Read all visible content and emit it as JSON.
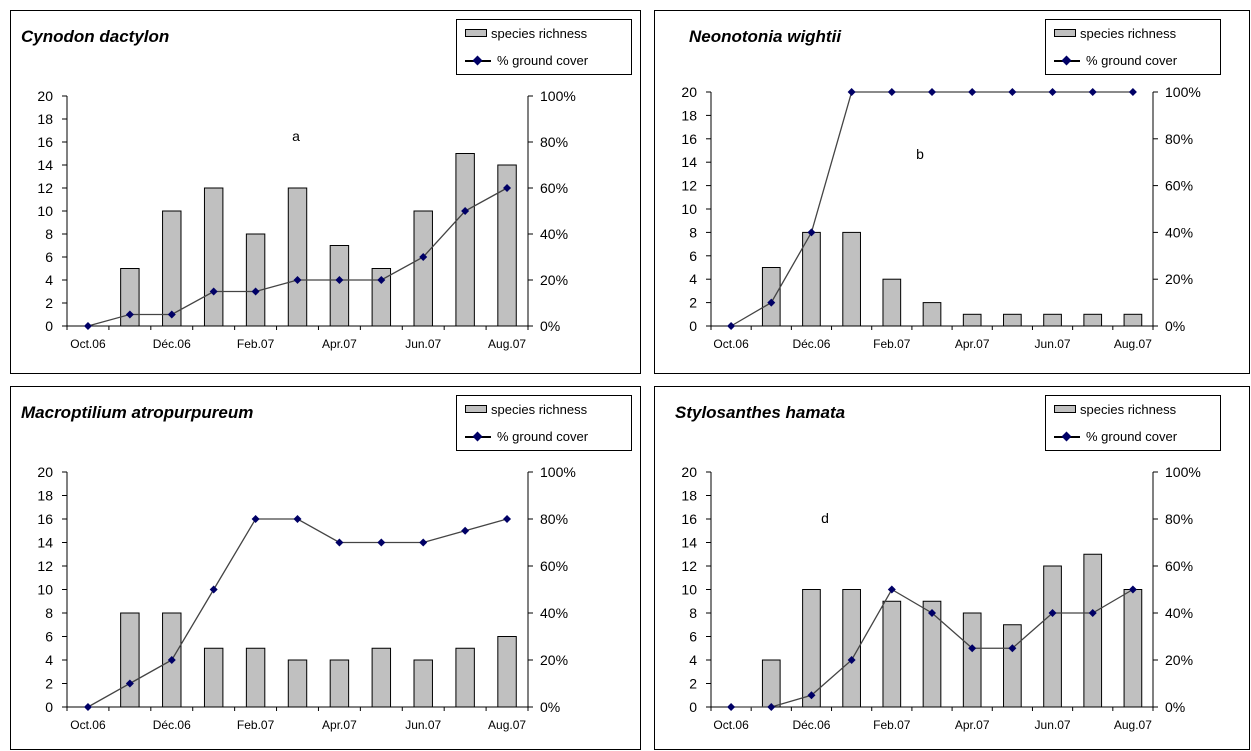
{
  "legend": {
    "bars_label": "species richness",
    "line_label": "% ground cover"
  },
  "colors": {
    "bar_fill": "#c0c0c0",
    "line": "#444444",
    "marker": "#000066"
  },
  "chart_data": [
    {
      "type": "bar",
      "title": "Cynodon dactylon",
      "annotation": "a",
      "categories": [
        "Oct.06",
        "",
        "Déc.06",
        "",
        "Feb.07",
        "",
        "Apr.07",
        "",
        "Jun.07",
        "",
        "Aug.07"
      ],
      "x_tick_labels": [
        "Oct.06",
        "Déc.06",
        "Feb.07",
        "Apr.07",
        "Jun.07",
        "Aug.07"
      ],
      "left_axis": {
        "range": [
          0,
          20
        ],
        "ticks": [
          "0",
          "2",
          "4",
          "6",
          "8",
          "10",
          "12",
          "14",
          "16",
          "18",
          "20"
        ]
      },
      "right_axis": {
        "range": [
          0,
          100
        ],
        "ticks": [
          "0%",
          "20%",
          "40%",
          "60%",
          "80%",
          "100%"
        ]
      },
      "series": [
        {
          "name": "species richness",
          "type": "bar",
          "axis": "left",
          "values": [
            0,
            5,
            10,
            12,
            8,
            12,
            7,
            5,
            10,
            15,
            14
          ]
        },
        {
          "name": "% ground cover",
          "type": "line",
          "axis": "right",
          "values": [
            0,
            5,
            5,
            15,
            15,
            20,
            20,
            20,
            30,
            50,
            60
          ]
        }
      ]
    },
    {
      "type": "bar",
      "title": "Neonotonia wightii",
      "annotation": "b",
      "categories": [
        "Oct.06",
        "",
        "Déc.06",
        "",
        "Feb.07",
        "",
        "Apr.07",
        "",
        "Jun.07",
        "",
        "Aug.07"
      ],
      "x_tick_labels": [
        "Oct.06",
        "Déc.06",
        "Feb.07",
        "Apr.07",
        "Jun.07",
        "Aug.07"
      ],
      "left_axis": {
        "range": [
          0,
          20
        ],
        "ticks": [
          "0",
          "2",
          "4",
          "6",
          "8",
          "10",
          "12",
          "14",
          "16",
          "18",
          "20"
        ]
      },
      "right_axis": {
        "range": [
          0,
          100
        ],
        "ticks": [
          "0%",
          "20%",
          "40%",
          "60%",
          "80%",
          "100%"
        ]
      },
      "series": [
        {
          "name": "species richness",
          "type": "bar",
          "axis": "left",
          "values": [
            0,
            5,
            8,
            8,
            4,
            2,
            1,
            1,
            1,
            1,
            1
          ]
        },
        {
          "name": "% ground cover",
          "type": "line",
          "axis": "right",
          "values": [
            0,
            10,
            40,
            100,
            100,
            100,
            100,
            100,
            100,
            100,
            100
          ]
        }
      ]
    },
    {
      "type": "bar",
      "title": "Macroptilium atropurpureum",
      "annotation": "",
      "categories": [
        "Oct.06",
        "",
        "Déc.06",
        "",
        "Feb.07",
        "",
        "Apr.07",
        "",
        "Jun.07",
        "",
        "Aug.07"
      ],
      "x_tick_labels": [
        "Oct.06",
        "Déc.06",
        "Feb.07",
        "Apr.07",
        "Jun.07",
        "Aug.07"
      ],
      "left_axis": {
        "range": [
          0,
          20
        ],
        "ticks": [
          "0",
          "2",
          "4",
          "6",
          "8",
          "10",
          "12",
          "14",
          "16",
          "18",
          "20"
        ]
      },
      "right_axis": {
        "range": [
          0,
          100
        ],
        "ticks": [
          "0%",
          "20%",
          "40%",
          "60%",
          "80%",
          "100%"
        ]
      },
      "series": [
        {
          "name": "species richness",
          "type": "bar",
          "axis": "left",
          "values": [
            0,
            8,
            8,
            5,
            5,
            4,
            4,
            5,
            4,
            5,
            6
          ]
        },
        {
          "name": "% ground cover",
          "type": "line",
          "axis": "right",
          "values": [
            0,
            10,
            20,
            50,
            80,
            80,
            70,
            70,
            70,
            75,
            80
          ]
        }
      ]
    },
    {
      "type": "bar",
      "title": "Stylosanthes hamata",
      "annotation": "d",
      "categories": [
        "Oct.06",
        "",
        "Déc.06",
        "",
        "Feb.07",
        "",
        "Apr.07",
        "",
        "Jun.07",
        "",
        "Aug.07"
      ],
      "x_tick_labels": [
        "Oct.06",
        "Déc.06",
        "Feb.07",
        "Apr.07",
        "Jun.07",
        "Aug.07"
      ],
      "left_axis": {
        "range": [
          0,
          20
        ],
        "ticks": [
          "0",
          "2",
          "4",
          "6",
          "8",
          "10",
          "12",
          "14",
          "16",
          "18",
          "20"
        ]
      },
      "right_axis": {
        "range": [
          0,
          100
        ],
        "ticks": [
          "0%",
          "20%",
          "40%",
          "60%",
          "80%",
          "100%"
        ]
      },
      "series": [
        {
          "name": "species richness",
          "type": "bar",
          "axis": "left",
          "values": [
            0,
            4,
            10,
            10,
            9,
            9,
            8,
            7,
            12,
            13,
            10
          ]
        },
        {
          "name": "% ground cover",
          "type": "line",
          "axis": "right",
          "values": [
            0,
            0,
            5,
            20,
            50,
            40,
            25,
            25,
            40,
            40,
            50
          ]
        }
      ]
    }
  ]
}
